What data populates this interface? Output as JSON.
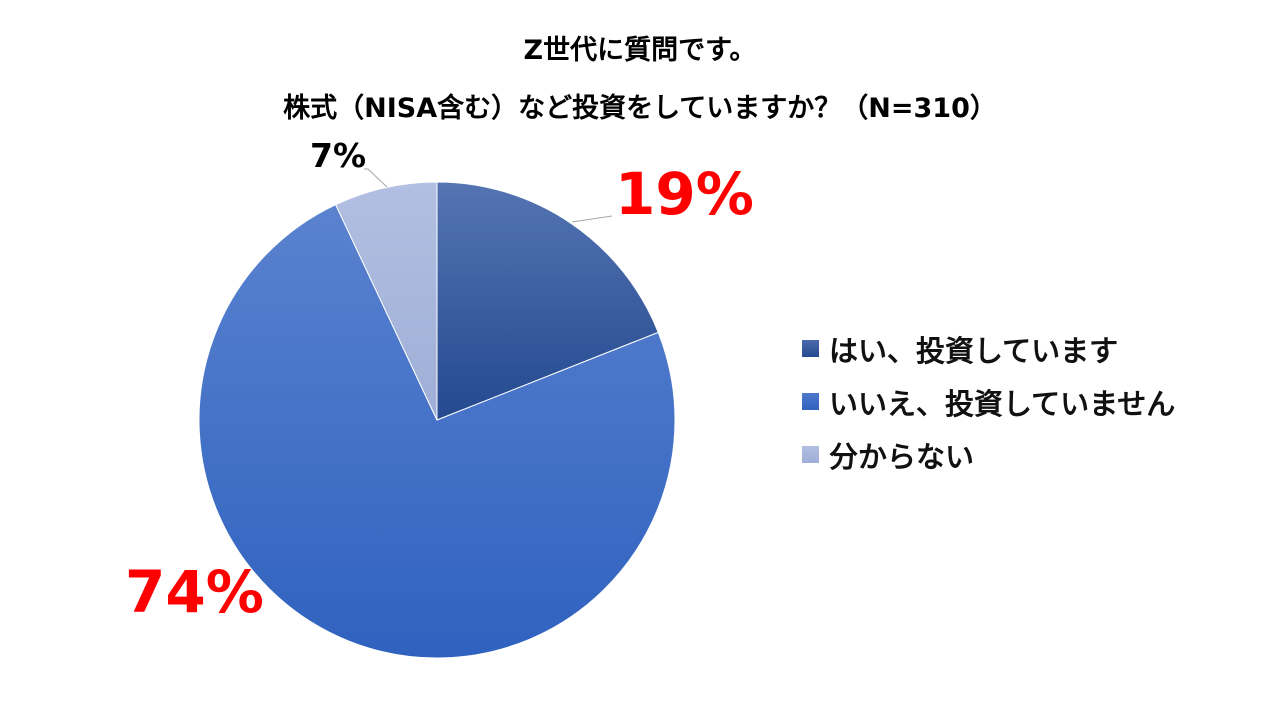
{
  "chart_data": {
    "type": "pie",
    "title": "Z世代に質問です。",
    "subtitle": "株式（NISA含む）など投資をしていますか？（N=310）",
    "categories": [
      "はい、投資しています",
      "いいえ、投資していません",
      "分からない"
    ],
    "values": [
      19,
      74,
      7
    ],
    "unit": "%",
    "data_labels": [
      "19%",
      "74%",
      "7%"
    ],
    "colors": [
      "#2e56a0",
      "#3f6cc6",
      "#aab8de"
    ],
    "legend_position": "right",
    "n": 310
  },
  "title": {
    "line1": "Z世代に質問です。",
    "line2": "株式（NISA含む）など投資をしていますか？（N=310）"
  },
  "legend": {
    "items": [
      {
        "label": "はい、投資しています",
        "color": "#2e56a0"
      },
      {
        "label": "いいえ、投資していません",
        "color": "#3f6cc6"
      },
      {
        "label": "分からない",
        "color": "#aab8de"
      }
    ]
  },
  "labels": {
    "yes": "19%",
    "no": "74%",
    "unknown": "7%"
  }
}
